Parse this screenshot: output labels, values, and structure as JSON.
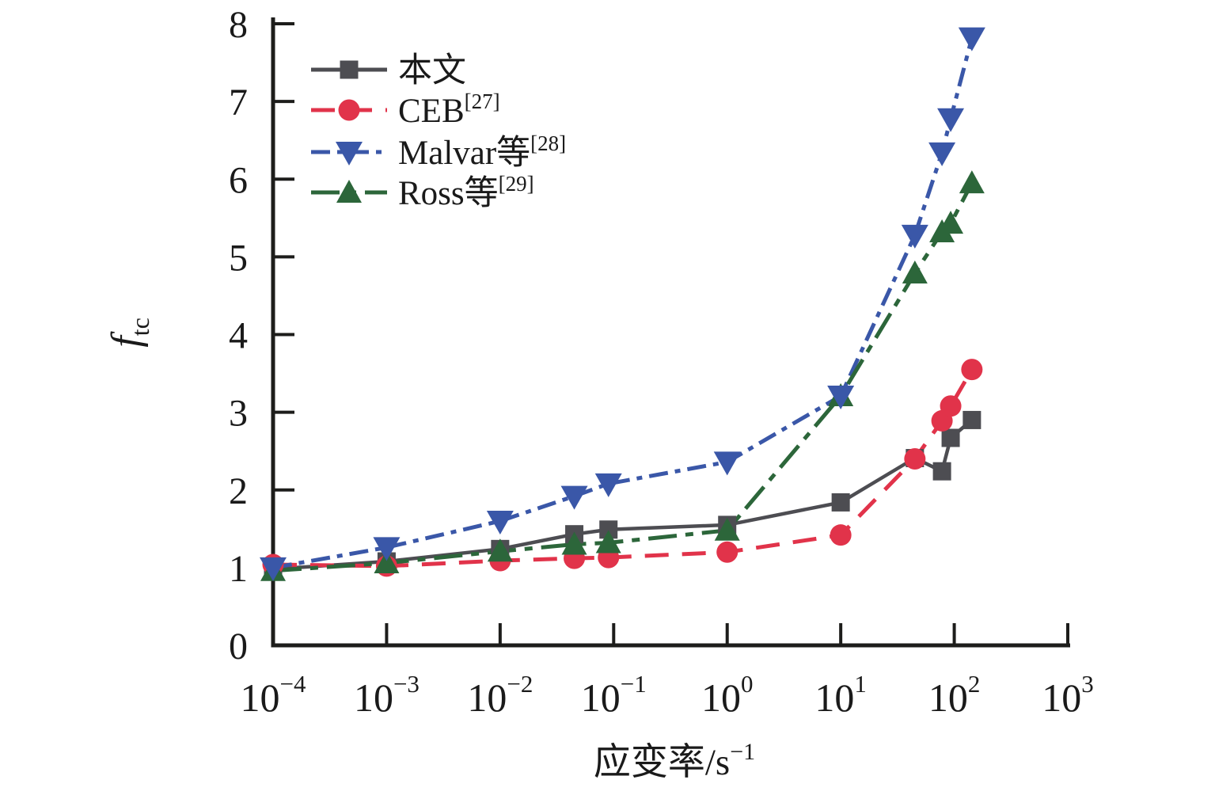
{
  "figure": {
    "background": "#ffffff",
    "axis_color": "#1d1d1b",
    "text_color": "#1a1a1a"
  },
  "chart_data": {
    "type": "line",
    "x_scale": "log",
    "grid": false,
    "legend_position": "upper-left",
    "xlabel": "应变率/s",
    "xlabel_superscript": "−1",
    "ylabel": "f",
    "ylabel_subscript": "tc",
    "ylim": [
      0,
      8
    ],
    "y_ticks": [
      0,
      1,
      2,
      3,
      4,
      5,
      6,
      7,
      8
    ],
    "x_tick_base": "10",
    "x_tick_exponents": [
      -4,
      -3,
      -2,
      -1,
      0,
      1,
      2,
      3
    ],
    "x_tick_labels": [
      "10⁻⁴",
      "10⁻³",
      "10⁻²",
      "10⁻¹",
      "10⁰",
      "10¹",
      "10²",
      "10³"
    ],
    "x": [
      0.0001,
      0.001,
      0.01,
      0.045,
      0.09,
      1,
      10,
      45,
      78,
      93,
      143
    ],
    "series": [
      {
        "name": "本文",
        "reference": "",
        "color": "#4d4d52",
        "marker": "square",
        "line_style": "solid",
        "values": [
          0.98,
          1.08,
          1.24,
          1.43,
          1.49,
          1.55,
          1.84,
          2.41,
          2.24,
          2.67,
          2.9
        ]
      },
      {
        "name": "CEB",
        "reference": "[27]",
        "color": "#e1334a",
        "marker": "circle",
        "line_style": "dashed",
        "values": [
          1.04,
          1.02,
          1.09,
          1.12,
          1.13,
          1.2,
          1.42,
          2.4,
          2.89,
          3.08,
          3.55
        ]
      },
      {
        "name": "Malvar等",
        "reference": "[28]",
        "color": "#3a57a8",
        "marker": "triangle-down",
        "line_style": "dash-dot",
        "values": [
          1.0,
          1.26,
          1.6,
          1.92,
          2.08,
          2.36,
          3.21,
          5.28,
          6.34,
          6.78,
          7.82
        ]
      },
      {
        "name": "Ross等",
        "reference": "[29]",
        "color": "#2c663a",
        "marker": "triangle-up",
        "line_style": "long-dash-dot",
        "values": [
          0.96,
          1.06,
          1.21,
          1.3,
          1.32,
          1.48,
          3.21,
          4.79,
          5.32,
          5.43,
          5.95
        ]
      }
    ]
  }
}
